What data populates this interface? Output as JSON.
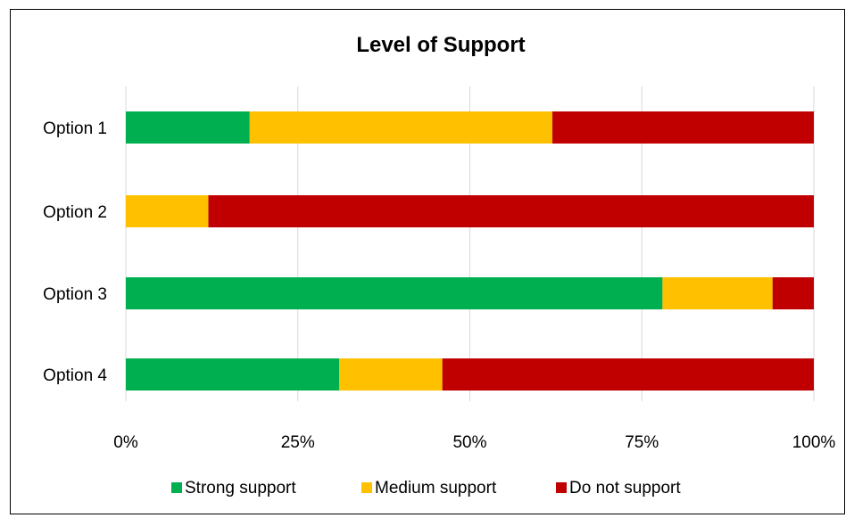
{
  "chart_data": {
    "type": "bar",
    "orientation": "horizontal",
    "stacked": true,
    "title": "Level of Support",
    "xlabel": "",
    "ylabel": "",
    "categories": [
      "Option 1",
      "Option 2",
      "Option 3",
      "Option 4"
    ],
    "series": [
      {
        "name": "Strong support",
        "values": [
          0.18,
          0.0,
          0.78,
          0.31
        ],
        "color": "#00B050"
      },
      {
        "name": "Medium support",
        "values": [
          0.44,
          0.12,
          0.16,
          0.15
        ],
        "color": "#FFC000"
      },
      {
        "name": "Do not support",
        "values": [
          0.38,
          0.88,
          0.06,
          0.54
        ],
        "color": "#C00000"
      }
    ],
    "xlim": [
      0,
      1
    ],
    "x_ticks": [
      "0%",
      "25%",
      "50%",
      "75%",
      "100%"
    ],
    "grid": true,
    "legend_position": "bottom"
  }
}
